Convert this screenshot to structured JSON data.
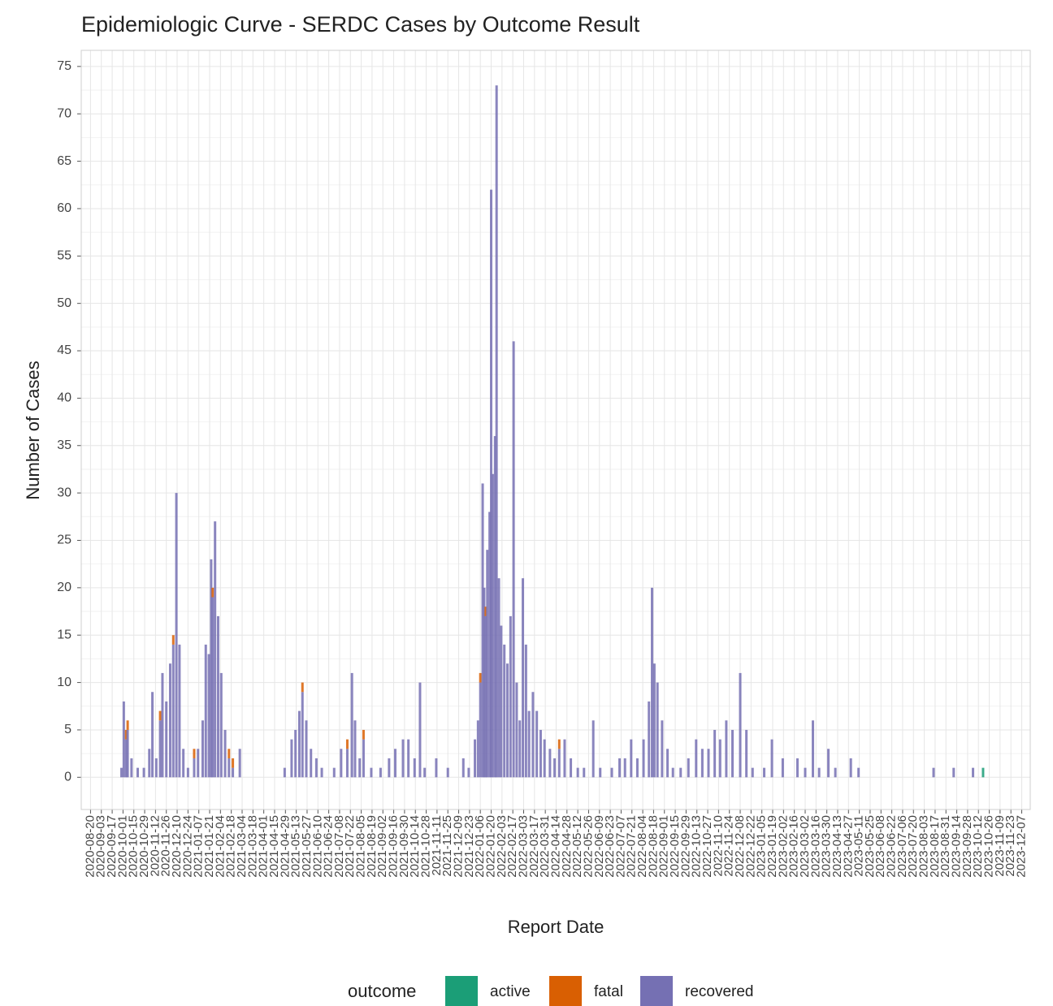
{
  "chart_data": {
    "type": "bar",
    "stacked": true,
    "title": "Epidemiologic Curve - SERDC Cases by Outcome Result",
    "x_label": "Report Date",
    "y_label": "Number of Cases",
    "legend_title": "outcome",
    "legend_position": "bottom",
    "grid": true,
    "xlim": [
      "2020-08-08",
      "2023-12-18"
    ],
    "ylim": [
      -3.4,
      76.7
    ],
    "yticks": [
      0,
      5,
      10,
      15,
      20,
      25,
      30,
      35,
      40,
      45,
      50,
      55,
      60,
      65,
      70,
      75
    ],
    "xticks": [
      "2020-08-20",
      "2020-09-03",
      "2020-09-17",
      "2020-10-01",
      "2020-10-15",
      "2020-10-29",
      "2020-11-12",
      "2020-11-26",
      "2020-12-10",
      "2020-12-24",
      "2021-01-07",
      "2021-01-21",
      "2021-02-04",
      "2021-02-18",
      "2021-03-04",
      "2021-03-18",
      "2021-04-01",
      "2021-04-15",
      "2021-04-29",
      "2021-05-13",
      "2021-05-27",
      "2021-06-10",
      "2021-06-24",
      "2021-07-08",
      "2021-07-22",
      "2021-08-05",
      "2021-08-19",
      "2021-09-02",
      "2021-09-16",
      "2021-09-30",
      "2021-10-14",
      "2021-10-28",
      "2021-11-11",
      "2021-11-25",
      "2021-12-09",
      "2021-12-23",
      "2022-01-06",
      "2022-01-20",
      "2022-02-03",
      "2022-02-17",
      "2022-03-03",
      "2022-03-17",
      "2022-03-31",
      "2022-04-14",
      "2022-04-28",
      "2022-05-12",
      "2022-05-26",
      "2022-06-09",
      "2022-06-23",
      "2022-07-07",
      "2022-07-21",
      "2022-08-04",
      "2022-08-18",
      "2022-09-01",
      "2022-09-15",
      "2022-09-29",
      "2022-10-13",
      "2022-10-27",
      "2022-11-10",
      "2022-11-24",
      "2022-12-08",
      "2022-12-22",
      "2023-01-05",
      "2023-01-19",
      "2023-02-02",
      "2023-02-16",
      "2023-03-02",
      "2023-03-16",
      "2023-03-30",
      "2023-04-13",
      "2023-04-27",
      "2023-05-11",
      "2023-05-25",
      "2023-06-08",
      "2023-06-22",
      "2023-07-06",
      "2023-07-20",
      "2023-08-03",
      "2023-08-17",
      "2023-08-31",
      "2023-09-14",
      "2023-09-28",
      "2023-10-12",
      "2023-10-26",
      "2023-11-09",
      "2023-11-23",
      "2023-12-07"
    ],
    "x": [
      "2020-09-29",
      "2020-10-02",
      "2020-10-05",
      "2020-10-07",
      "2020-10-12",
      "2020-10-20",
      "2020-10-28",
      "2020-11-04",
      "2020-11-08",
      "2020-11-13",
      "2020-11-18",
      "2020-11-21",
      "2020-11-26",
      "2020-12-01",
      "2020-12-05",
      "2020-12-09",
      "2020-12-13",
      "2020-12-18",
      "2020-12-24",
      "2021-01-01",
      "2021-01-06",
      "2021-01-12",
      "2021-01-16",
      "2021-01-20",
      "2021-01-23",
      "2021-01-25",
      "2021-01-28",
      "2021-02-01",
      "2021-02-05",
      "2021-02-10",
      "2021-02-15",
      "2021-02-20",
      "2021-03-01",
      "2021-04-28",
      "2021-05-07",
      "2021-05-12",
      "2021-05-17",
      "2021-05-21",
      "2021-05-26",
      "2021-06-01",
      "2021-06-08",
      "2021-06-15",
      "2021-07-01",
      "2021-07-10",
      "2021-07-18",
      "2021-07-24",
      "2021-07-28",
      "2021-08-03",
      "2021-08-08",
      "2021-08-18",
      "2021-08-30",
      "2021-09-10",
      "2021-09-18",
      "2021-09-28",
      "2021-10-05",
      "2021-10-13",
      "2021-10-20",
      "2021-10-26",
      "2021-11-10",
      "2021-11-25",
      "2021-12-15",
      "2021-12-22",
      "2021-12-30",
      "2022-01-03",
      "2022-01-06",
      "2022-01-09",
      "2022-01-11",
      "2022-01-13",
      "2022-01-15",
      "2022-01-18",
      "2022-01-20",
      "2022-01-22",
      "2022-01-25",
      "2022-01-27",
      "2022-01-30",
      "2022-02-02",
      "2022-02-06",
      "2022-02-10",
      "2022-02-14",
      "2022-02-18",
      "2022-02-22",
      "2022-02-26",
      "2022-03-02",
      "2022-03-06",
      "2022-03-10",
      "2022-03-15",
      "2022-03-20",
      "2022-03-25",
      "2022-03-30",
      "2022-04-06",
      "2022-04-12",
      "2022-04-18",
      "2022-04-25",
      "2022-05-03",
      "2022-05-12",
      "2022-05-20",
      "2022-06-01",
      "2022-06-10",
      "2022-06-25",
      "2022-07-05",
      "2022-07-12",
      "2022-07-20",
      "2022-07-28",
      "2022-08-05",
      "2022-08-12",
      "2022-08-16",
      "2022-08-19",
      "2022-08-23",
      "2022-08-29",
      "2022-09-05",
      "2022-09-12",
      "2022-09-22",
      "2022-10-02",
      "2022-10-12",
      "2022-10-20",
      "2022-10-28",
      "2022-11-05",
      "2022-11-12",
      "2022-11-20",
      "2022-11-28",
      "2022-12-08",
      "2022-12-16",
      "2022-12-24",
      "2023-01-08",
      "2023-01-18",
      "2023-02-01",
      "2023-02-20",
      "2023-03-02",
      "2023-03-12",
      "2023-03-20",
      "2023-04-01",
      "2023-04-10",
      "2023-04-30",
      "2023-05-10",
      "2023-08-15",
      "2023-09-10",
      "2023-10-05",
      "2023-10-18"
    ],
    "series": [
      {
        "name": "active",
        "color": "#1b9e77",
        "values": [
          0,
          0,
          0,
          0,
          0,
          0,
          0,
          0,
          0,
          0,
          0,
          0,
          0,
          0,
          0,
          0,
          0,
          0,
          0,
          0,
          0,
          0,
          0,
          0,
          0,
          0,
          0,
          0,
          0,
          0,
          0,
          0,
          0,
          0,
          0,
          0,
          0,
          0,
          0,
          0,
          0,
          0,
          0,
          0,
          0,
          0,
          0,
          0,
          0,
          0,
          0,
          0,
          0,
          0,
          0,
          0,
          0,
          0,
          0,
          0,
          0,
          0,
          0,
          0,
          0,
          0,
          0,
          0,
          0,
          0,
          0,
          0,
          0,
          0,
          0,
          0,
          0,
          0,
          0,
          0,
          0,
          0,
          0,
          0,
          0,
          0,
          0,
          0,
          0,
          0,
          0,
          0,
          0,
          0,
          0,
          0,
          0,
          0,
          0,
          0,
          0,
          0,
          0,
          0,
          0,
          0,
          0,
          0,
          0,
          0,
          0,
          0,
          0,
          0,
          0,
          0,
          0,
          0,
          0,
          0,
          0,
          0,
          0,
          0,
          0,
          0,
          0,
          0,
          0,
          0,
          0,
          0,
          0,
          0,
          0,
          0,
          0,
          1
        ]
      },
      {
        "name": "fatal",
        "color": "#d95f02",
        "values": [
          0,
          0,
          1,
          1,
          0,
          0,
          0,
          0,
          0,
          0,
          1,
          0,
          0,
          0,
          1,
          0,
          0,
          0,
          0,
          1,
          0,
          0,
          0,
          0,
          0,
          1,
          0,
          0,
          0,
          0,
          1,
          1,
          0,
          0,
          0,
          0,
          0,
          1,
          0,
          0,
          0,
          0,
          0,
          0,
          1,
          0,
          0,
          0,
          1,
          0,
          0,
          0,
          0,
          0,
          0,
          0,
          0,
          0,
          0,
          0,
          0,
          0,
          0,
          0,
          1,
          0,
          0,
          1,
          0,
          0,
          0,
          0,
          0,
          0,
          0,
          0,
          0,
          0,
          0,
          0,
          0,
          0,
          0,
          0,
          0,
          0,
          0,
          0,
          0,
          0,
          0,
          1,
          0,
          0,
          0,
          0,
          0,
          0,
          0,
          0,
          0,
          0,
          0,
          0,
          0,
          0,
          0,
          0,
          0,
          0,
          0,
          0,
          0,
          0,
          0,
          0,
          0,
          0,
          0,
          0,
          0,
          0,
          0,
          0,
          0,
          0,
          0,
          0,
          0,
          0,
          0,
          0,
          0,
          0,
          0,
          0,
          0,
          0
        ]
      },
      {
        "name": "recovered",
        "color": "#7570b3",
        "values": [
          1,
          8,
          4,
          5,
          2,
          1,
          1,
          3,
          9,
          2,
          6,
          11,
          8,
          12,
          14,
          30,
          14,
          3,
          1,
          2,
          3,
          6,
          14,
          13,
          23,
          19,
          27,
          17,
          11,
          5,
          2,
          1,
          3,
          1,
          4,
          5,
          7,
          9,
          6,
          3,
          2,
          1,
          1,
          3,
          3,
          11,
          6,
          2,
          4,
          1,
          1,
          2,
          3,
          4,
          4,
          2,
          10,
          1,
          2,
          1,
          2,
          1,
          4,
          6,
          10,
          31,
          20,
          17,
          24,
          28,
          62,
          32,
          36,
          73,
          21,
          16,
          14,
          12,
          17,
          46,
          10,
          6,
          21,
          14,
          7,
          9,
          7,
          5,
          4,
          3,
          2,
          3,
          4,
          2,
          1,
          1,
          6,
          1,
          1,
          2,
          2,
          4,
          2,
          4,
          8,
          20,
          12,
          10,
          6,
          3,
          1,
          1,
          2,
          4,
          3,
          3,
          5,
          4,
          6,
          5,
          11,
          5,
          1,
          1,
          4,
          2,
          2,
          1,
          6,
          1,
          3,
          1,
          2,
          1,
          1,
          1,
          1,
          0
        ]
      }
    ]
  }
}
